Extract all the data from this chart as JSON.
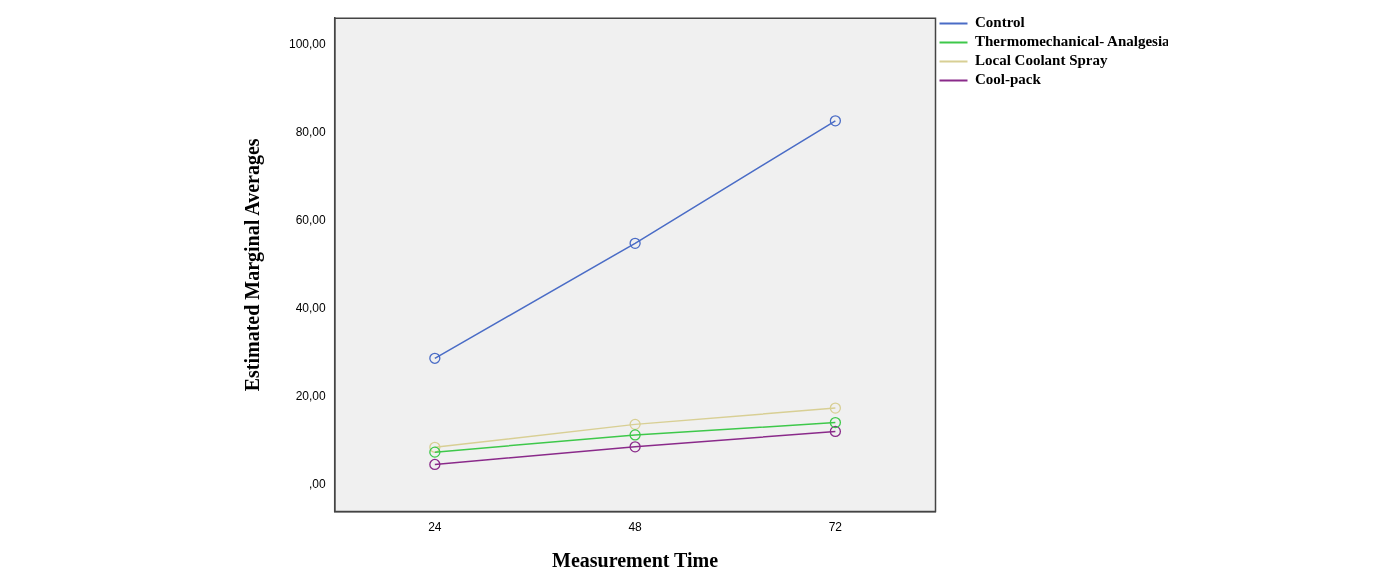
{
  "chart_data": {
    "type": "line",
    "xlabel": "Measurement Time",
    "ylabel": "Estimated Marginal Averages",
    "categories": [
      "24",
      "48",
      "72"
    ],
    "series": [
      {
        "name": "Control",
        "color": "#4a6cc6",
        "values": [
          28.8,
          54.9,
          82.7
        ]
      },
      {
        "name": "Thermomechanical- Analgesia",
        "color": "#3ec84a",
        "values": [
          7.5,
          11.4,
          14.2
        ]
      },
      {
        "name": "Local Coolant Spray",
        "color": "#d8cf94",
        "values": [
          8.6,
          13.8,
          17.5
        ]
      },
      {
        "name": "Cool-pack",
        "color": "#8a2a8a",
        "values": [
          4.7,
          8.7,
          12.2
        ]
      }
    ],
    "ylim": [
      -6,
      106
    ],
    "yticks": [
      {
        "value": 0,
        "label": ",00"
      },
      {
        "value": 20,
        "label": "20,00"
      },
      {
        "value": 40,
        "label": "40,00"
      },
      {
        "value": 60,
        "label": "60,00"
      },
      {
        "value": 80,
        "label": "80,00"
      },
      {
        "value": 100,
        "label": "100,00"
      }
    ],
    "legend": "right",
    "marker": "circle",
    "grid": false
  }
}
